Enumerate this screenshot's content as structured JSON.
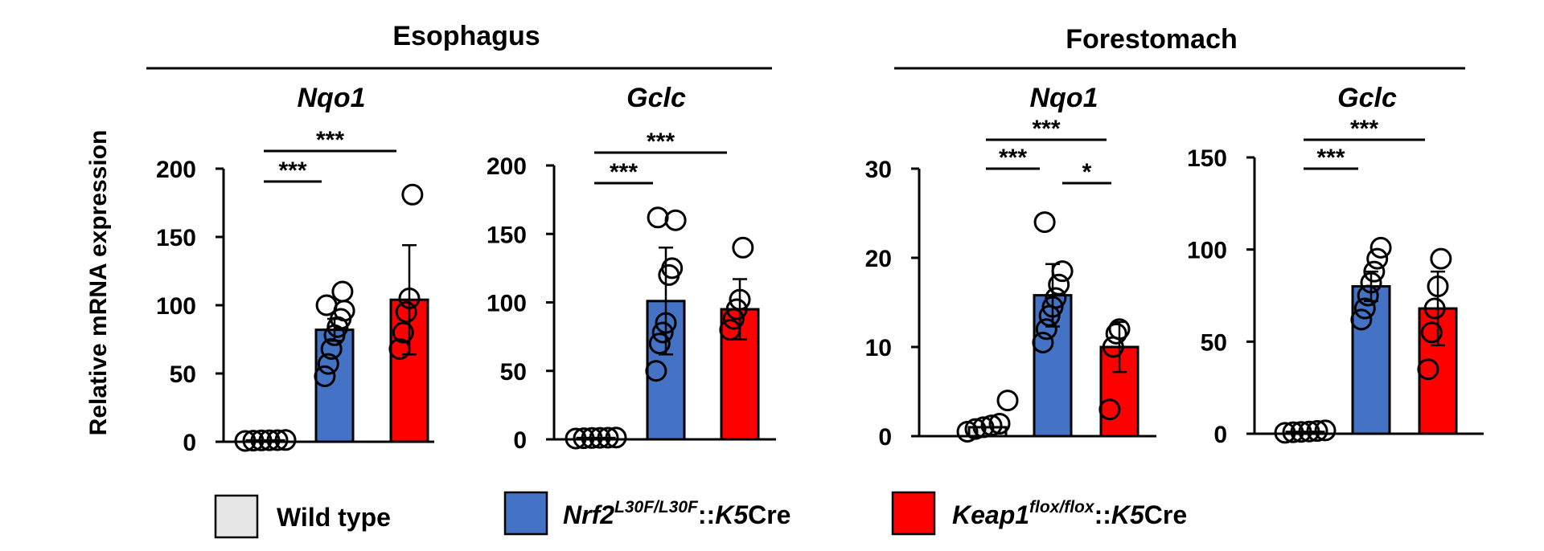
{
  "y_axis_label": "Relative mRNA expression",
  "chart_data": [
    {
      "type": "bar",
      "group": "Esophagus",
      "title": "Nqo1",
      "ylim": [
        0,
        200
      ],
      "yticks": [
        0,
        50,
        100,
        150,
        200
      ],
      "categories": [
        "Wild type",
        "Nrf2L30F/L30F::K5Cre",
        "Keap1flox/flox::K5Cre"
      ],
      "values": [
        1,
        82,
        104
      ],
      "errors": [
        0.5,
        8,
        40
      ],
      "points": [
        [
          0.6,
          0.8,
          1.0,
          1.1,
          1.2,
          1.3
        ],
        [
          48,
          57,
          68,
          78,
          84,
          90,
          96,
          100,
          110
        ],
        [
          68,
          80,
          95,
          105,
          181
        ]
      ],
      "significance": [
        {
          "from": 0,
          "to": 1,
          "label": "***"
        },
        {
          "from": 0,
          "to": 2,
          "label": "***"
        }
      ]
    },
    {
      "type": "bar",
      "group": "Esophagus",
      "title": "Gclc",
      "ylim": [
        0,
        200
      ],
      "yticks": [
        0,
        50,
        100,
        150,
        200
      ],
      "categories": [
        "Wild type",
        "Nrf2L30F/L30F::K5Cre",
        "Keap1flox/flox::K5Cre"
      ],
      "values": [
        1,
        101,
        95
      ],
      "errors": [
        0.5,
        39,
        22
      ],
      "points": [
        [
          0.6,
          0.8,
          1.0,
          1.1,
          1.2,
          1.3
        ],
        [
          50,
          70,
          78,
          85,
          120,
          125,
          160,
          162
        ],
        [
          80,
          88,
          95,
          102,
          140
        ]
      ],
      "significance": [
        {
          "from": 0,
          "to": 1,
          "label": "***"
        },
        {
          "from": 0,
          "to": 2,
          "label": "***"
        }
      ]
    },
    {
      "type": "bar",
      "group": "Forestomach",
      "title": "Nqo1",
      "ylim": [
        0,
        30
      ],
      "yticks": [
        0,
        10,
        20,
        30
      ],
      "categories": [
        "Wild type",
        "Nrf2L30F/L30F::K5Cre",
        "Keap1flox/flox::K5Cre"
      ],
      "values": [
        1,
        15.8,
        10
      ],
      "errors": [
        0.5,
        3.5,
        2.8
      ],
      "points": [
        [
          0.5,
          0.8,
          1.0,
          1.2,
          1.4,
          4.0
        ],
        [
          10.5,
          12,
          13.5,
          14.5,
          15.5,
          17,
          18.5,
          24
        ],
        [
          3,
          10,
          11.5,
          12
        ]
      ],
      "significance": [
        {
          "from": 0,
          "to": 1,
          "label": "***"
        },
        {
          "from": 0,
          "to": 2,
          "label": "***"
        },
        {
          "from": 1,
          "to": 2,
          "label": "*"
        }
      ]
    },
    {
      "type": "bar",
      "group": "Forestomach",
      "title": "Gclc",
      "ylim": [
        0,
        150
      ],
      "yticks": [
        0,
        50,
        100,
        150
      ],
      "categories": [
        "Wild type",
        "Nrf2L30F/L30F::K5Cre",
        "Keap1flox/flox::K5Cre"
      ],
      "values": [
        1,
        80,
        68
      ],
      "errors": [
        0.5,
        8,
        20
      ],
      "points": [
        [
          0.5,
          0.8,
          1.0,
          1.2,
          1.5,
          1.8
        ],
        [
          62,
          68,
          75,
          82,
          88,
          95,
          101
        ],
        [
          35,
          55,
          68,
          80,
          95
        ]
      ],
      "significance": [
        {
          "from": 0,
          "to": 1,
          "label": "***"
        },
        {
          "from": 0,
          "to": 2,
          "label": "***"
        }
      ]
    }
  ],
  "groups": [
    {
      "name": "Esophagus"
    },
    {
      "name": "Forestomach"
    }
  ],
  "legend": {
    "items": [
      {
        "color": "#e6e6e6",
        "label": "Wild type"
      },
      {
        "color": "#4472c4",
        "gene": "Nrf2",
        "sup": "L30F/L30F",
        "sep": "::",
        "driver": "K5",
        "suffix": "Cre"
      },
      {
        "color": "#ff0000",
        "gene": "Keap1",
        "sup": "flox/flox",
        "sep": "::",
        "driver": "K5",
        "suffix": "Cre"
      }
    ]
  },
  "colors": {
    "wild_type": "#e6e6e6",
    "nrf2": "#4472c4",
    "keap1": "#ff0000"
  }
}
